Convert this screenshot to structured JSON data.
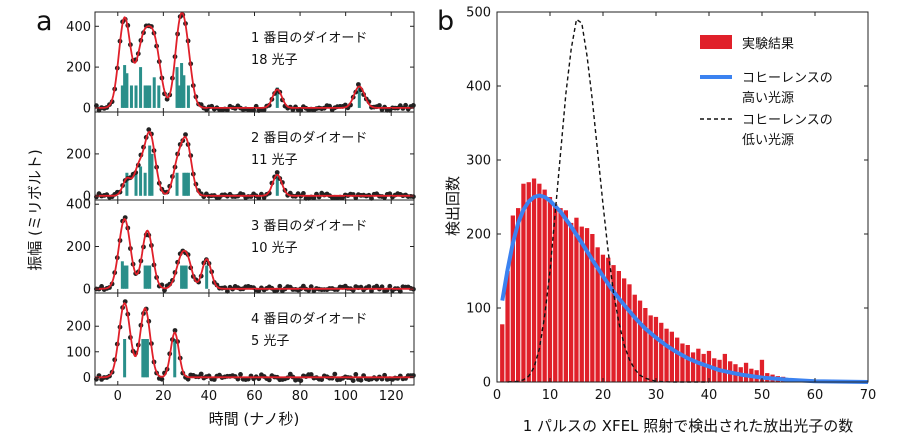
{
  "figure": {
    "panel_a_letter": "a",
    "panel_b_letter": "b"
  },
  "chart_data": [
    {
      "type": "line",
      "panel": "a",
      "xlabel": "時間 (ナノ秒)",
      "ylabel": "振幅 (ミリボルト)",
      "xlim": [
        -10,
        130
      ],
      "xticks": [
        0,
        20,
        40,
        60,
        80,
        100,
        120
      ],
      "grid": false,
      "colors": {
        "data": "#222222",
        "fit": "#e0202a",
        "spikes": "#2a8f8a"
      },
      "subplots": [
        {
          "label_lines": [
            "1 番目のダイオード",
            "18 光子"
          ],
          "ylim": [
            -20,
            470
          ],
          "yticks": [
            0,
            200,
            400
          ],
          "series": [
            {
              "name": "",
              "kind": "fit",
              "peaks": [
                [
                  3,
                  440,
                  2.5
                ],
                [
                  11,
                  305,
                  2.7
                ],
                [
                  16,
                  310,
                  2.7
                ],
                [
                  27,
                  315,
                  2.2
                ],
                [
                  30,
                  265,
                  2.3
                ],
                [
                  70,
                  90,
                  2.0
                ],
                [
                  106,
                  105,
                  2.3
                ]
              ]
            },
            {
              "name": "",
              "kind": "spikes",
              "x": [
                2,
                3,
                4,
                6,
                8,
                10,
                12,
                13,
                14,
                16,
                18,
                26,
                27,
                28,
                29,
                31,
                70,
                106
              ],
              "values": [
                110,
                210,
                170,
                110,
                110,
                200,
                110,
                110,
                110,
                150,
                110,
                200,
                110,
                220,
                160,
                110,
                100,
                110
              ]
            }
          ]
        },
        {
          "label_lines": [
            "2 番目のダイオード",
            "11 光子"
          ],
          "ylim": [
            -20,
            400
          ],
          "yticks": [
            0,
            200
          ],
          "series": [
            {
              "name": "",
              "kind": "fit",
              "peaks": [
                [
                  4,
                  80,
                  1.8
                ],
                [
                  9,
                  120,
                  2.0
                ],
                [
                  14,
                  300,
                  2.4
                ],
                [
                  26,
                  125,
                  2.0
                ],
                [
                  30,
                  260,
                  2.3
                ],
                [
                  70,
                  100,
                  2.0
                ]
              ]
            },
            {
              "name": "",
              "kind": "spikes",
              "x": [
                4,
                8,
                10,
                12,
                14,
                15,
                26,
                29,
                30,
                31,
                70
              ],
              "values": [
                110,
                110,
                140,
                110,
                240,
                200,
                110,
                110,
                110,
                110,
                110
              ]
            }
          ]
        },
        {
          "label_lines": [
            "3 番目のダイオード",
            "10 光子"
          ],
          "ylim": [
            -20,
            420
          ],
          "yticks": [
            0,
            200,
            400
          ],
          "series": [
            {
              "name": "",
              "kind": "fit",
              "peaks": [
                [
                  3,
                  330,
                  2.5
                ],
                [
                  13,
                  275,
                  2.3
                ],
                [
                  28,
                  140,
                  2.4
                ],
                [
                  31,
                  85,
                  2.0
                ],
                [
                  39,
                  140,
                  2.0
                ]
              ]
            },
            {
              "name": "",
              "kind": "spikes",
              "x": [
                2,
                3,
                4,
                12,
                13,
                14,
                28,
                29,
                30,
                39
              ],
              "values": [
                130,
                110,
                110,
                110,
                110,
                110,
                110,
                110,
                110,
                110
              ]
            }
          ]
        },
        {
          "label_lines": [
            "4 番目のダイオード",
            "5 光子"
          ],
          "ylim": [
            -30,
            330
          ],
          "yticks": [
            0,
            100,
            200
          ],
          "series": [
            {
              "name": "",
              "kind": "fit",
              "peaks": [
                [
                  3,
                  290,
                  2.4
                ],
                [
                  12,
                  270,
                  2.2
                ],
                [
                  25,
                  175,
                  1.8
                ]
              ]
            },
            {
              "name": "",
              "kind": "spikes",
              "x": [
                3,
                11,
                12,
                13,
                25
              ],
              "values": [
                150,
                150,
                150,
                150,
                150
              ]
            }
          ]
        }
      ]
    },
    {
      "type": "bar",
      "panel": "b",
      "xlabel": "1 パルスの XFEL 照射で検出された放出光子の数",
      "ylabel": "検出回数",
      "xlim": [
        0,
        70
      ],
      "ylim": [
        0,
        500
      ],
      "xticks": [
        0,
        10,
        20,
        30,
        40,
        50,
        60,
        70
      ],
      "yticks": [
        0,
        100,
        200,
        300,
        400,
        500
      ],
      "grid": false,
      "legend_position": "top-right",
      "colors": {
        "bars": "#e0202a",
        "coherent": "#3b82f0",
        "incoherent": "#111111"
      },
      "legend": [
        {
          "kind": "bar",
          "lines": [
            "実験結果"
          ]
        },
        {
          "kind": "line",
          "lines": [
            "コヒーレンスの",
            "高い光源"
          ]
        },
        {
          "kind": "dashed",
          "lines": [
            "コヒーレンスの",
            "低い光源"
          ]
        }
      ],
      "histogram": {
        "x": [
          1,
          2,
          3,
          4,
          5,
          6,
          7,
          8,
          9,
          10,
          11,
          12,
          13,
          14,
          15,
          16,
          17,
          18,
          19,
          20,
          21,
          22,
          23,
          24,
          25,
          26,
          27,
          28,
          29,
          30,
          31,
          32,
          33,
          34,
          35,
          36,
          37,
          38,
          39,
          40,
          41,
          42,
          43,
          44,
          45,
          46,
          47,
          48,
          49,
          50,
          51,
          52,
          53,
          54,
          55,
          56,
          57,
          58
        ],
        "values": [
          78,
          150,
          225,
          235,
          268,
          270,
          275,
          268,
          260,
          250,
          240,
          235,
          232,
          215,
          222,
          210,
          208,
          200,
          182,
          172,
          168,
          158,
          150,
          140,
          132,
          118,
          110,
          100,
          90,
          88,
          80,
          72,
          68,
          60,
          52,
          50,
          40,
          45,
          38,
          42,
          32,
          30,
          38,
          28,
          24,
          20,
          26,
          18,
          16,
          30,
          12,
          10,
          8,
          7,
          5,
          4,
          3,
          2
        ]
      },
      "series": [
        {
          "name": "コヒーレンスの高い光源",
          "style": "solid",
          "x": [
            1,
            2,
            3,
            4,
            5,
            6,
            7,
            8,
            9,
            10,
            12,
            14,
            16,
            18,
            20,
            22,
            24,
            26,
            28,
            30,
            32,
            34,
            36,
            38,
            40,
            42,
            44,
            46,
            48,
            50,
            55,
            60,
            65,
            70
          ],
          "y": [
            110,
            152,
            188,
            215,
            233,
            244,
            250,
            252,
            250,
            245,
            230,
            210,
            188,
            165,
            143,
            122,
            104,
            87,
            72,
            60,
            49,
            40,
            32,
            26,
            21,
            16,
            13,
            10,
            8,
            6,
            3,
            1,
            0.5,
            0
          ]
        },
        {
          "name": "コヒーレンスの低い光源",
          "style": "dashed",
          "x": [
            2,
            4,
            5,
            6,
            7,
            8,
            9,
            10,
            11,
            12,
            13,
            14,
            15,
            16,
            17,
            18,
            19,
            20,
            21,
            22,
            23,
            24,
            25,
            26,
            27,
            28,
            29,
            30,
            31,
            33,
            35,
            40
          ],
          "y": [
            0,
            1,
            3,
            8,
            20,
            45,
            90,
            150,
            230,
            310,
            390,
            450,
            490,
            485,
            440,
            380,
            310,
            240,
            175,
            120,
            80,
            50,
            30,
            17,
            9,
            5,
            3,
            1,
            0.5,
            0,
            0,
            0
          ]
        }
      ]
    }
  ]
}
